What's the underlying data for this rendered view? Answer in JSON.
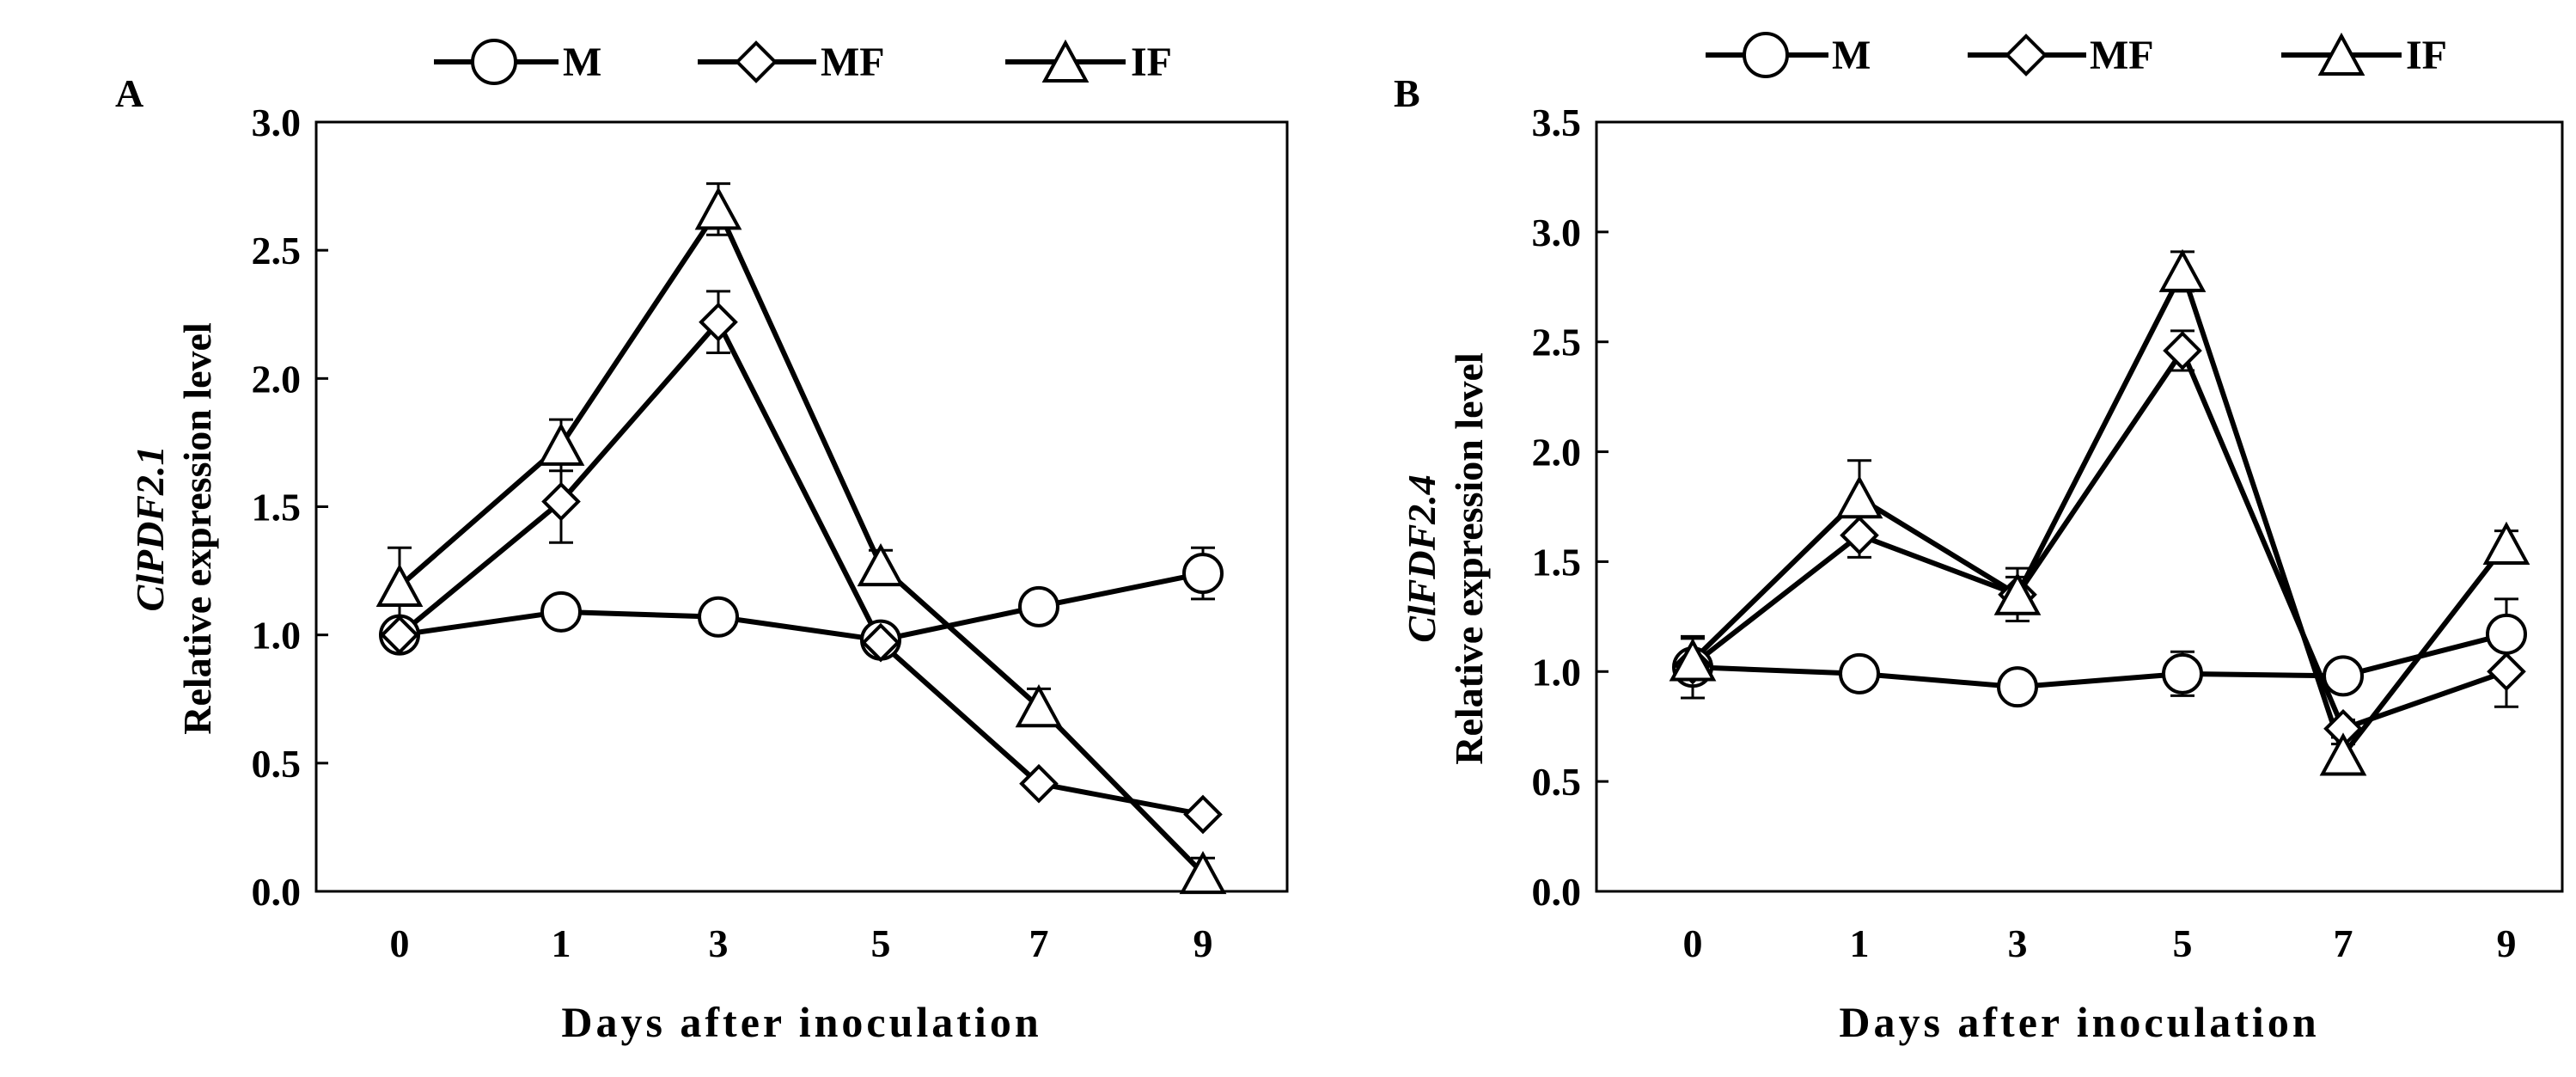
{
  "chart_data": [
    {
      "type": "line",
      "panel_label": "A",
      "gene": "ClPDF2.1",
      "ylabel": "Relative expression level",
      "xlabel": "Days after inoculation",
      "categories": [
        "0",
        "1",
        "3",
        "5",
        "7",
        "9"
      ],
      "ylim": [
        0,
        3.0
      ],
      "yticks": [
        "0.0",
        "0.5",
        "1.0",
        "1.5",
        "2.0",
        "2.5",
        "3.0"
      ],
      "legend_position": "top",
      "series": [
        {
          "name": "M",
          "marker": "circle",
          "values": [
            1.0,
            1.09,
            1.07,
            0.98,
            1.11,
            1.24
          ],
          "errors": [
            0.03,
            0.02,
            0.02,
            0.03,
            0.03,
            0.1
          ]
        },
        {
          "name": "MF",
          "marker": "diamond",
          "values": [
            1.0,
            1.52,
            2.22,
            0.97,
            0.42,
            0.3
          ],
          "errors": [
            0.05,
            0.16,
            0.12,
            0.03,
            0.02,
            0.02
          ]
        },
        {
          "name": "IF",
          "marker": "triangle",
          "values": [
            1.19,
            1.74,
            2.66,
            1.27,
            0.72,
            0.07
          ],
          "errors": [
            0.15,
            0.1,
            0.1,
            0.06,
            0.07,
            0.06
          ]
        }
      ]
    },
    {
      "type": "line",
      "panel_label": "B",
      "gene": "ClFDF2.4",
      "ylabel": "Relative expression level",
      "xlabel": "Days after inoculation",
      "categories": [
        "0",
        "1",
        "3",
        "5",
        "7",
        "9"
      ],
      "ylim": [
        0,
        3.5
      ],
      "yticks": [
        "0.0",
        "0.5",
        "1.0",
        "1.5",
        "2.0",
        "2.5",
        "3.0",
        "3.5"
      ],
      "legend_position": "top",
      "series": [
        {
          "name": "M",
          "marker": "circle",
          "values": [
            1.02,
            0.99,
            0.93,
            0.99,
            0.98,
            1.17
          ],
          "errors": [
            0.14,
            0.03,
            0.03,
            0.1,
            0.03,
            0.16
          ]
        },
        {
          "name": "MF",
          "marker": "diamond",
          "values": [
            1.03,
            1.62,
            1.35,
            2.46,
            0.74,
            1.0
          ],
          "errors": [
            0.05,
            0.1,
            0.08,
            0.09,
            0.04,
            0.16
          ]
        },
        {
          "name": "IF",
          "marker": "triangle",
          "values": [
            1.05,
            1.79,
            1.35,
            2.82,
            0.62,
            1.58
          ],
          "errors": [
            0.1,
            0.17,
            0.12,
            0.09,
            0.05,
            0.06
          ]
        }
      ]
    }
  ]
}
